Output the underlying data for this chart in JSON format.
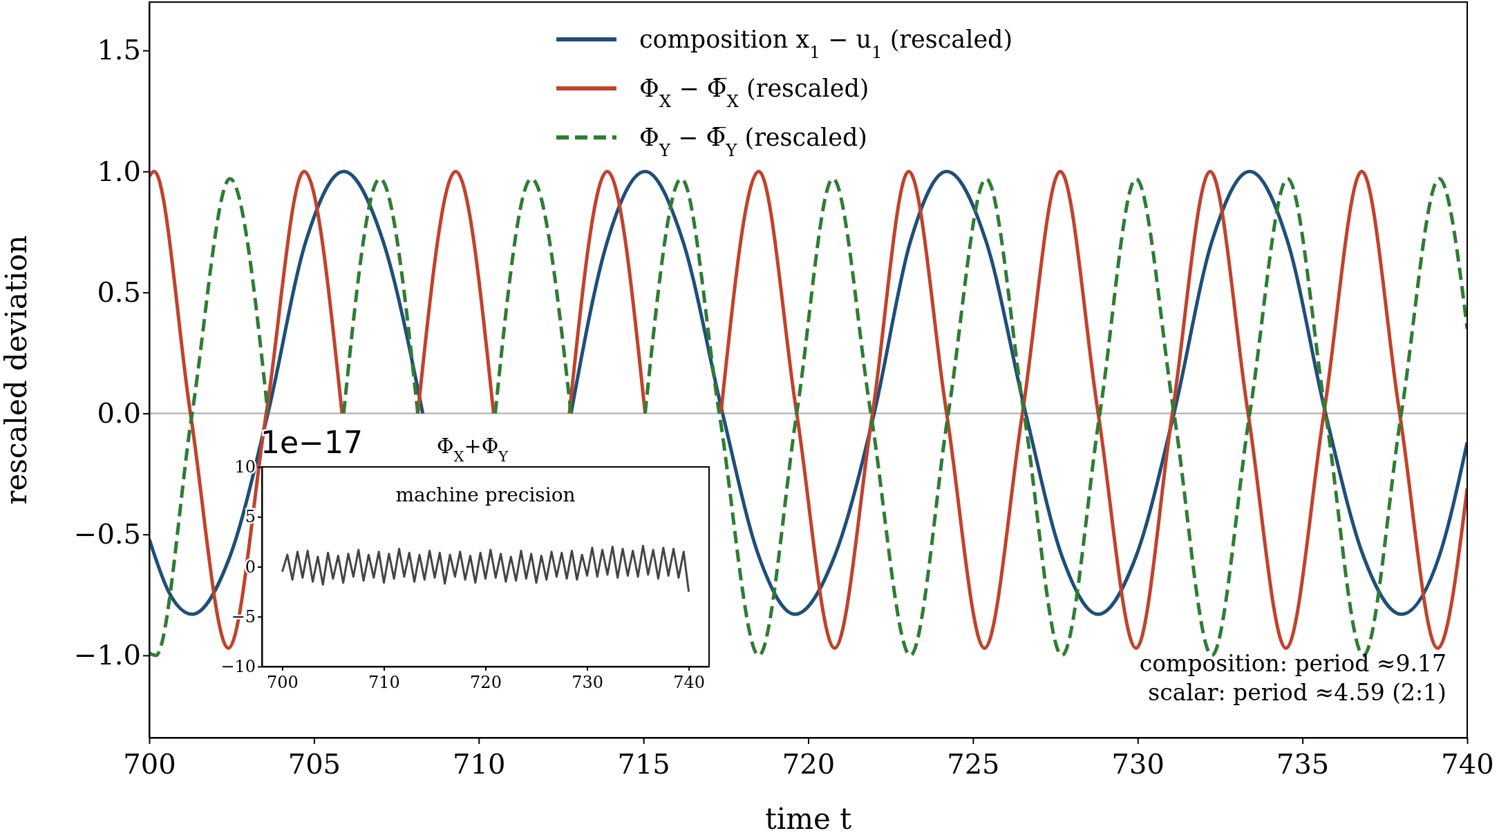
{
  "chart_data": [
    {
      "type": "line",
      "xlabel": "time t",
      "ylabel": "rescaled deviation",
      "xlim": [
        700,
        740
      ],
      "ylim": [
        -1.34,
        1.7
      ],
      "xticks": [
        700,
        705,
        710,
        715,
        720,
        725,
        730,
        735,
        740
      ],
      "yticks": [
        {
          "value": -1,
          "label": "−1.0"
        },
        {
          "value": -0.5,
          "label": "−0.5"
        },
        {
          "value": 0,
          "label": "0.0"
        },
        0.5,
        {
          "value": 1,
          "label": "1.0"
        },
        1.5
      ],
      "grid": false,
      "legend": "top",
      "ref_lines": [
        {
          "axis": "y",
          "value": 0,
          "color": "#aaaaaa"
        }
      ],
      "annotations": [
        "composition: period ≈9.17",
        "scalar: period ≈4.59  (2:1)"
      ],
      "series": [
        {
          "name": "composition x$_{1}$ − u$_{1}$ (rescaled)",
          "color": "#1f4e79",
          "line_style": "solid",
          "x": [
            700,
            700.6,
            701.3,
            702.45,
            703.6,
            704.75,
            705.9,
            707.1,
            708.3,
            709.4,
            710.45,
            711.6,
            712.8,
            713.9,
            715.05,
            716.2,
            717.4,
            718.5,
            719.6,
            720.8,
            722.0,
            723.1,
            724.2,
            725.4,
            726.6,
            727.7,
            728.8,
            729.95,
            731.1,
            732.25,
            733.4,
            734.55,
            735.7,
            736.85,
            738.0,
            739.15,
            740
          ],
          "values": [
            -0.52,
            -0.74,
            -0.83,
            -0.59,
            0,
            0.71,
            1.0,
            0.71,
            0,
            null,
            null,
            null,
            0,
            0.71,
            1.0,
            0.71,
            0,
            -0.59,
            -0.83,
            -0.59,
            0,
            0.71,
            1.0,
            0.71,
            0,
            -0.59,
            -0.83,
            -0.59,
            0,
            0.71,
            1.0,
            0.71,
            0,
            -0.59,
            -0.83,
            -0.59,
            -0.12
          ]
        },
        {
          "name": "Φ$_{X}$ − Φ̅$_{X}$ (rescaled)",
          "color": "#c0432b",
          "line_style": "solid",
          "x": [
            700,
            700.15,
            701.25,
            702.4,
            703.55,
            704.7,
            705.85,
            707.0,
            708.15,
            709.3,
            710.45,
            711.6,
            712.75,
            713.9,
            715.05,
            716.2,
            717.35,
            718.5,
            719.65,
            720.8,
            721.95,
            723.05,
            724.2,
            725.35,
            726.5,
            727.65,
            728.8,
            729.95,
            731.05,
            732.2,
            733.35,
            734.5,
            735.65,
            736.8,
            737.95,
            739.1,
            740
          ],
          "values": [
            0.98,
            1.0,
            0,
            -0.97,
            0,
            1.0,
            0,
            null,
            0,
            1.0,
            0,
            null,
            0,
            1.0,
            0,
            null,
            0,
            1.0,
            0,
            -0.97,
            0,
            1.0,
            0,
            -0.97,
            0,
            1.0,
            0,
            -0.97,
            0,
            1.0,
            0,
            -0.97,
            0,
            1.0,
            0,
            -0.97,
            -0.31
          ]
        },
        {
          "name": "Φ$_{Y}$ − Φ̅$_{Y}$ (rescaled)",
          "color": "#2e7d32",
          "line_style": "dashed",
          "x": [
            700,
            700.2,
            701.3,
            702.45,
            703.6,
            704.75,
            705.9,
            707.0,
            708.15,
            709.35,
            710.5,
            711.6,
            712.8,
            713.95,
            715.05,
            716.15,
            717.3,
            718.5,
            719.65,
            720.75,
            721.9,
            723.1,
            724.25,
            725.4,
            726.55,
            727.7,
            728.85,
            729.95,
            731.1,
            732.25,
            733.4,
            734.55,
            735.7,
            736.85,
            738.0,
            739.15,
            740
          ],
          "values": [
            -0.99,
            -1.0,
            0,
            0.97,
            0,
            null,
            0,
            0.97,
            0,
            null,
            0,
            0.97,
            0,
            null,
            0,
            0.97,
            0,
            -1.0,
            0,
            0.97,
            0,
            -1.0,
            0,
            0.97,
            0,
            -1.0,
            0,
            0.97,
            0,
            -1.0,
            0,
            0.97,
            0,
            -1.0,
            0,
            0.97,
            0.35
          ]
        }
      ]
    },
    {
      "type": "line",
      "title": "Φ$_{X}$+Φ$_{Y}$",
      "xlim": [
        698,
        742
      ],
      "ylim": [
        -10,
        10
      ],
      "xticks": [
        700,
        710,
        720,
        730,
        740
      ],
      "yticks": [
        {
          "value": -10,
          "label": "−10"
        },
        {
          "value": -5,
          "label": "−5"
        },
        0,
        5,
        10
      ],
      "grid": false,
      "annotations": [
        "machine precision",
        "1e−17"
      ],
      "series": [
        {
          "color": "#444444",
          "line_style": "solid",
          "x": [
            700,
            700.5,
            701,
            701.5,
            702,
            702.5,
            703,
            703.5,
            704,
            704.5,
            705,
            705.5,
            706,
            706.5,
            707,
            707.5,
            708,
            708.5,
            709,
            709.5,
            710,
            710.5,
            711,
            711.5,
            712,
            712.5,
            713,
            713.5,
            714,
            714.5,
            715,
            715.5,
            716,
            716.5,
            717,
            717.5,
            718,
            718.5,
            719,
            719.5,
            720,
            720.5,
            721,
            721.5,
            722,
            722.5,
            723,
            723.5,
            724,
            724.5,
            725,
            725.5,
            726,
            726.5,
            727,
            727.5,
            728,
            728.5,
            729,
            729.5,
            730,
            730.5,
            731,
            731.5,
            732,
            732.5,
            733,
            733.5,
            734,
            734.5,
            735,
            735.5,
            736,
            736.5,
            737,
            737.5,
            738,
            738.5,
            739,
            739.5,
            740
          ],
          "values": [
            -0.5,
            1.2,
            -1.3,
            1.5,
            -1.1,
            1.6,
            -1.5,
            1.0,
            -1.8,
            1.4,
            -1.2,
            1.1,
            -1.6,
            1.3,
            -1.0,
            1.7,
            -1.4,
            1.2,
            -1.1,
            1.5,
            -1.6,
            1.3,
            -1.2,
            1.8,
            -1.0,
            1.4,
            -1.5,
            1.2,
            -1.3,
            1.6,
            -1.1,
            1.4,
            -1.7,
            1.2,
            -1.0,
            1.5,
            -1.3,
            1.1,
            -1.6,
            1.4,
            -1.2,
            1.7,
            -1.1,
            1.3,
            -1.5,
            1.0,
            -1.4,
            1.6,
            -1.2,
            1.3,
            -1.6,
            1.1,
            -1.3,
            1.5,
            -1.0,
            1.4,
            -1.2,
            1.6,
            -1.3,
            1.2,
            -0.9,
            1.9,
            -1.0,
            1.7,
            -0.8,
            2.0,
            -1.1,
            1.8,
            -0.9,
            1.6,
            -1.0,
            2.1,
            -0.8,
            1.7,
            -1.2,
            1.9,
            -0.9,
            1.8,
            -1.1,
            1.5,
            -2.5
          ]
        }
      ]
    }
  ]
}
